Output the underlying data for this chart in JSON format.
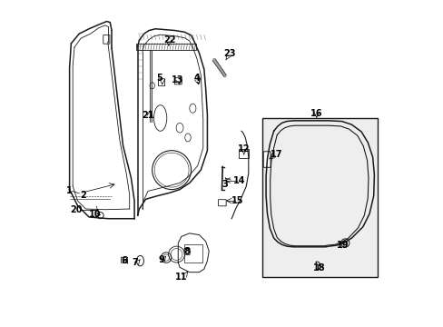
{
  "bg_color": "#ffffff",
  "line_color": "#1a1a1a",
  "fig_width": 4.89,
  "fig_height": 3.6,
  "label_fs": 7.0,
  "lw": 0.8
}
